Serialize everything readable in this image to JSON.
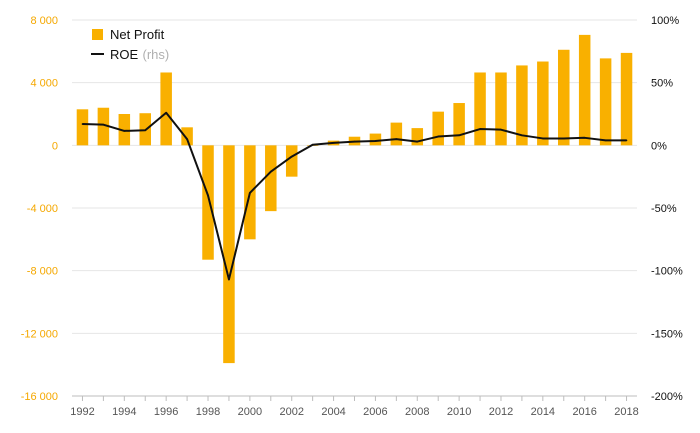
{
  "chart_data": {
    "type": "bar",
    "x": [
      1992,
      1993,
      1994,
      1995,
      1996,
      1997,
      1998,
      1999,
      2000,
      2001,
      2002,
      2003,
      2004,
      2005,
      2006,
      2007,
      2008,
      2009,
      2010,
      2011,
      2012,
      2013,
      2014,
      2015,
      2016,
      2017,
      2018
    ],
    "x_tick_labels": [
      "1992",
      "1994",
      "1996",
      "1998",
      "2000",
      "2002",
      "2004",
      "2006",
      "2008",
      "2010",
      "2012",
      "2014",
      "2016",
      "2018"
    ],
    "series": [
      {
        "name": "Net Profit",
        "type": "bar",
        "axis": "left",
        "color": "#f9b000",
        "values": [
          2300,
          2400,
          2000,
          2050,
          4650,
          1150,
          -7300,
          -13900,
          -6000,
          -4200,
          -2000,
          0,
          300,
          550,
          750,
          1450,
          1100,
          2150,
          2700,
          4650,
          4650,
          5100,
          5350,
          6100,
          7050,
          5550,
          5900
        ]
      },
      {
        "name": "ROE",
        "name_suffix": "(rhs)",
        "type": "line",
        "axis": "right",
        "color": "#111111",
        "values": [
          17,
          16.5,
          11.5,
          12,
          26,
          5,
          -40,
          -107,
          -38,
          -21,
          -9,
          0.5,
          2,
          3,
          3.5,
          5,
          3,
          7,
          8,
          13,
          12.5,
          8,
          5.5,
          5.5,
          6,
          4,
          4
        ]
      }
    ],
    "y_left": {
      "ticks": [
        8000,
        4000,
        0,
        -4000,
        -8000,
        -12000,
        -16000
      ],
      "tick_labels": [
        "8 000",
        "4 000",
        "0",
        "-4 000",
        "-8 000",
        "-12 000",
        "-16 000"
      ],
      "ylim": [
        -16000,
        8000
      ],
      "color": "#f5a800"
    },
    "y_right": {
      "ticks": [
        100,
        50,
        0,
        -50,
        -100,
        -150,
        -200
      ],
      "tick_labels": [
        "100%",
        "50%",
        "0%",
        "-50%",
        "-100%",
        "-150%",
        "-200%"
      ],
      "ylim": [
        -200,
        100
      ]
    },
    "grid": true,
    "legend": "top-left"
  }
}
